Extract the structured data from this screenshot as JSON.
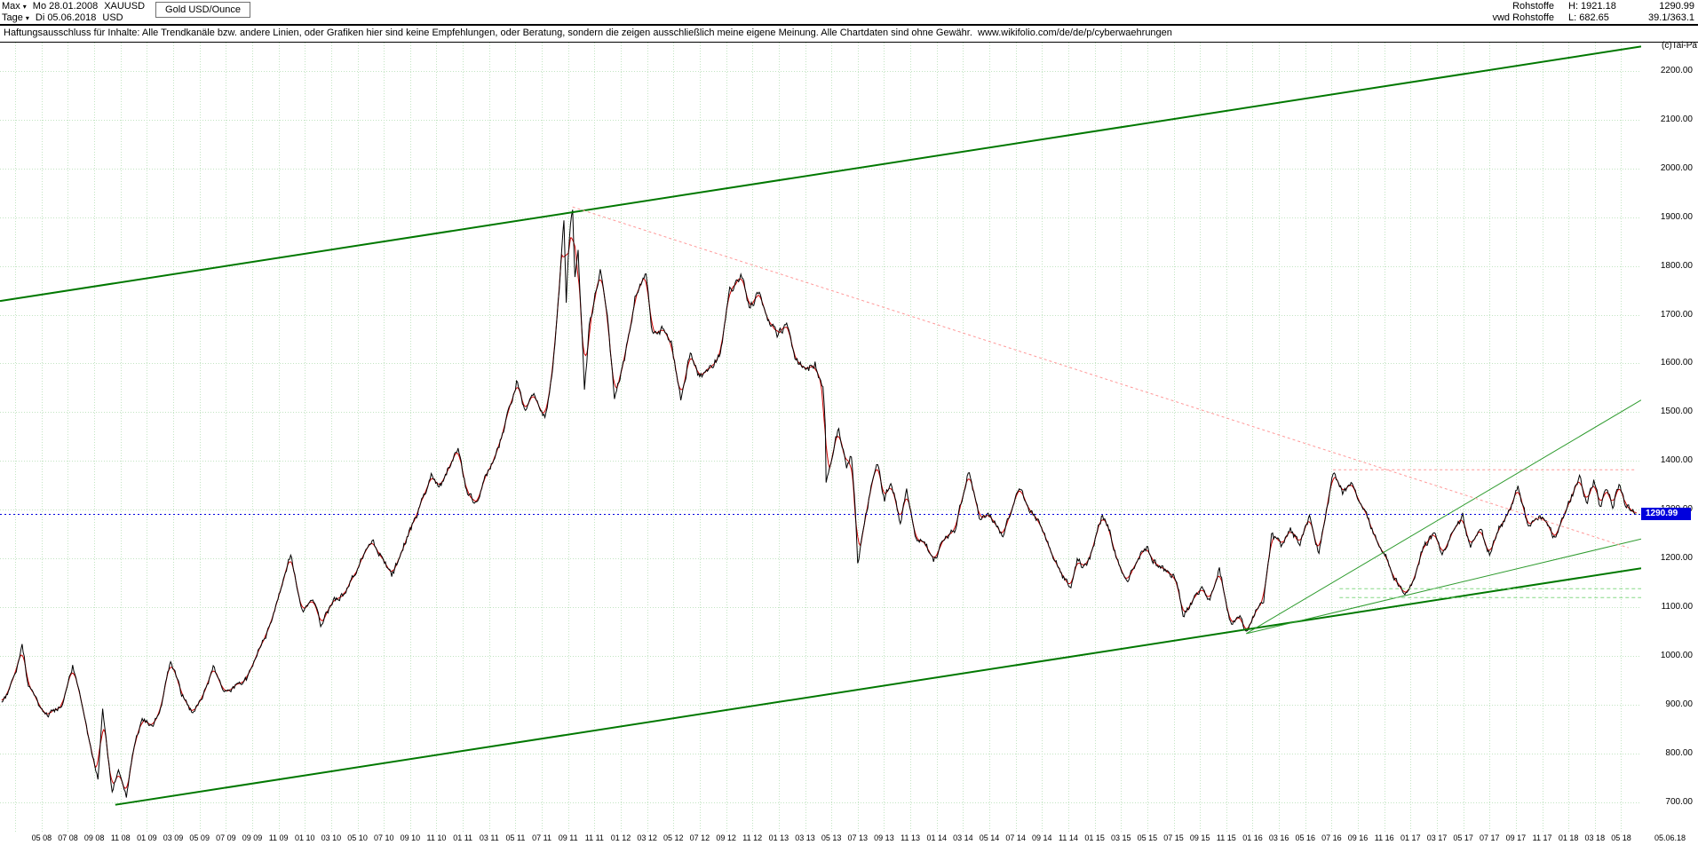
{
  "icons": {
    "chevron_down": "▾"
  },
  "header": {
    "range_button": "Max",
    "period_button": "Tage",
    "start_date": "Mo 28.01.2008",
    "end_date": "Di 05.06.2018",
    "symbol": "XAUUSD",
    "currency": "USD",
    "instrument": "Gold USD/Ounce",
    "category": "Rohstoffe",
    "provider": "vwd Rohstoffe",
    "high": "H: 1921.18",
    "low": "L: 682.65",
    "last": "1290.99",
    "stat": "39.1/363.1"
  },
  "disclaimer": "Haftungsausschluss für Inhalte: Alle Trendkanäle bzw. andere Linien, oder Grafiken hier sind keine Empfehlungen, oder Beratung, sondern die zeigen ausschließlich meine eigene Meinung. Alle Chartdaten sind ohne Gewähr.  www.wikifolio.com/de/de/p/cyberwaehrungen",
  "copyright": "(c)Tai-Pa",
  "chart_data": {
    "type": "line",
    "title": "Gold USD/Ounce",
    "symbol": "XAUUSD",
    "last_price": 1290.99,
    "last_price_tag": "1290.99",
    "last_price_color": "#0000dd",
    "grid_color": "#c2e4c2",
    "x_range": [
      2008.07,
      2018.46
    ],
    "y_range": [
      638,
      2258
    ],
    "y_tick_values": [
      2200,
      2100,
      2000,
      1900,
      1800,
      1700,
      1600,
      1500,
      1400,
      1300,
      1200,
      1100,
      1000,
      900,
      800,
      700
    ],
    "y_tick_labels": [
      "2200.00",
      "2100.00",
      "2000.00",
      "1900.00",
      "1800.00",
      "1700.00",
      "1600.00",
      "1500.00",
      "1400.00",
      "1300.00",
      "1200.00",
      "1100.00",
      "1000.00",
      "900.00",
      "800.00",
      "700.00"
    ],
    "x_tick_start_year": 2008,
    "x_tick_start_month": 5,
    "x_tick_step_months": 2,
    "x_grid_extra": [
      2008.167
    ],
    "x_tick_labels": [
      "05 08",
      "07 08",
      "09 08",
      "11 08",
      "01 09",
      "03 09",
      "05 09",
      "07 09",
      "09 09",
      "11 09",
      "01 10",
      "03 10",
      "05 10",
      "07 10",
      "09 10",
      "11 10",
      "01 11",
      "03 11",
      "05 11",
      "07 11",
      "09 11",
      "11 11",
      "01 12",
      "03 12",
      "05 12",
      "07 12",
      "09 12",
      "11 12",
      "01 13",
      "03 13",
      "05 13",
      "07 13",
      "09 13",
      "11 13",
      "01 14",
      "03 14",
      "05 14",
      "07 14",
      "09 14",
      "11 14",
      "01 15",
      "03 15",
      "05 15",
      "07 15",
      "09 15",
      "11 15",
      "01 16",
      "03 16",
      "05 16",
      "07 16",
      "09 16",
      "11 16",
      "01 17",
      "03 17",
      "05 17",
      "07 17",
      "09 17",
      "11 17",
      "01 18",
      "03 18",
      "05 18"
    ],
    "x_end_label": "05.06.18",
    "series": [
      {
        "name": "xauusd-close",
        "color": "#000000",
        "points": [
          [
            2008.08,
            905
          ],
          [
            2008.13,
            930
          ],
          [
            2008.18,
            978
          ],
          [
            2008.21,
            1028
          ],
          [
            2008.25,
            938
          ],
          [
            2008.3,
            908
          ],
          [
            2008.37,
            878
          ],
          [
            2008.46,
            898
          ],
          [
            2008.53,
            978
          ],
          [
            2008.58,
            912
          ],
          [
            2008.63,
            832
          ],
          [
            2008.69,
            748
          ],
          [
            2008.72,
            898
          ],
          [
            2008.78,
            722
          ],
          [
            2008.82,
            772
          ],
          [
            2008.87,
            712
          ],
          [
            2008.92,
            818
          ],
          [
            2008.97,
            872
          ],
          [
            2009.04,
            852
          ],
          [
            2009.1,
            912
          ],
          [
            2009.15,
            992
          ],
          [
            2009.22,
            922
          ],
          [
            2009.29,
            882
          ],
          [
            2009.37,
            928
          ],
          [
            2009.42,
            978
          ],
          [
            2009.49,
            928
          ],
          [
            2009.56,
            938
          ],
          [
            2009.63,
            952
          ],
          [
            2009.69,
            998
          ],
          [
            2009.76,
            1048
          ],
          [
            2009.83,
            1118
          ],
          [
            2009.91,
            1208
          ],
          [
            2009.99,
            1088
          ],
          [
            2010.05,
            1122
          ],
          [
            2010.1,
            1062
          ],
          [
            2010.18,
            1112
          ],
          [
            2010.26,
            1132
          ],
          [
            2010.34,
            1188
          ],
          [
            2010.42,
            1238
          ],
          [
            2010.49,
            1205
          ],
          [
            2010.55,
            1162
          ],
          [
            2010.64,
            1238
          ],
          [
            2010.72,
            1298
          ],
          [
            2010.8,
            1372
          ],
          [
            2010.85,
            1342
          ],
          [
            2010.91,
            1388
          ],
          [
            2010.97,
            1420
          ],
          [
            2011.03,
            1332
          ],
          [
            2011.08,
            1312
          ],
          [
            2011.16,
            1378
          ],
          [
            2011.23,
            1432
          ],
          [
            2011.3,
            1512
          ],
          [
            2011.34,
            1562
          ],
          [
            2011.39,
            1498
          ],
          [
            2011.45,
            1532
          ],
          [
            2011.52,
            1486
          ],
          [
            2011.57,
            1592
          ],
          [
            2011.61,
            1748
          ],
          [
            2011.64,
            1898
          ],
          [
            2011.655,
            1732
          ],
          [
            2011.675,
            1862
          ],
          [
            2011.695,
            1921
          ],
          [
            2011.71,
            1782
          ],
          [
            2011.73,
            1822
          ],
          [
            2011.755,
            1652
          ],
          [
            2011.77,
            1542
          ],
          [
            2011.8,
            1672
          ],
          [
            2011.83,
            1722
          ],
          [
            2011.87,
            1792
          ],
          [
            2011.92,
            1682
          ],
          [
            2011.96,
            1528
          ],
          [
            2012.03,
            1618
          ],
          [
            2012.09,
            1738
          ],
          [
            2012.16,
            1782
          ],
          [
            2012.2,
            1662
          ],
          [
            2012.26,
            1668
          ],
          [
            2012.32,
            1638
          ],
          [
            2012.38,
            1532
          ],
          [
            2012.44,
            1622
          ],
          [
            2012.5,
            1568
          ],
          [
            2012.57,
            1592
          ],
          [
            2012.63,
            1618
          ],
          [
            2012.69,
            1748
          ],
          [
            2012.76,
            1782
          ],
          [
            2012.82,
            1712
          ],
          [
            2012.87,
            1748
          ],
          [
            2012.93,
            1692
          ],
          [
            2012.99,
            1658
          ],
          [
            2013.05,
            1678
          ],
          [
            2013.11,
            1608
          ],
          [
            2013.17,
            1582
          ],
          [
            2013.23,
            1602
          ],
          [
            2013.28,
            1552
          ],
          [
            2013.295,
            1478
          ],
          [
            2013.3,
            1352
          ],
          [
            2013.33,
            1398
          ],
          [
            2013.38,
            1468
          ],
          [
            2013.43,
            1388
          ],
          [
            2013.46,
            1412
          ],
          [
            2013.485,
            1302
          ],
          [
            2013.5,
            1188
          ],
          [
            2013.55,
            1288
          ],
          [
            2013.62,
            1398
          ],
          [
            2013.67,
            1322
          ],
          [
            2013.71,
            1362
          ],
          [
            2013.77,
            1272
          ],
          [
            2013.81,
            1342
          ],
          [
            2013.87,
            1242
          ],
          [
            2013.93,
            1232
          ],
          [
            2013.98,
            1192
          ],
          [
            2014.05,
            1242
          ],
          [
            2014.12,
            1262
          ],
          [
            2014.2,
            1382
          ],
          [
            2014.27,
            1288
          ],
          [
            2014.34,
            1292
          ],
          [
            2014.42,
            1244
          ],
          [
            2014.49,
            1322
          ],
          [
            2014.53,
            1338
          ],
          [
            2014.61,
            1288
          ],
          [
            2014.67,
            1258
          ],
          [
            2014.73,
            1212
          ],
          [
            2014.79,
            1168
          ],
          [
            2014.85,
            1138
          ],
          [
            2014.89,
            1198
          ],
          [
            2014.93,
            1182
          ],
          [
            2014.97,
            1198
          ],
          [
            2015.05,
            1292
          ],
          [
            2015.09,
            1262
          ],
          [
            2015.14,
            1202
          ],
          [
            2015.21,
            1152
          ],
          [
            2015.27,
            1202
          ],
          [
            2015.33,
            1222
          ],
          [
            2015.39,
            1188
          ],
          [
            2015.46,
            1172
          ],
          [
            2015.52,
            1158
          ],
          [
            2015.56,
            1082
          ],
          [
            2015.62,
            1112
          ],
          [
            2015.68,
            1142
          ],
          [
            2015.73,
            1108
          ],
          [
            2015.79,
            1182
          ],
          [
            2015.86,
            1068
          ],
          [
            2015.92,
            1078
          ],
          [
            2015.96,
            1048
          ],
          [
            2016.02,
            1092
          ],
          [
            2016.07,
            1118
          ],
          [
            2016.12,
            1246
          ],
          [
            2016.18,
            1228
          ],
          [
            2016.24,
            1258
          ],
          [
            2016.3,
            1228
          ],
          [
            2016.36,
            1288
          ],
          [
            2016.42,
            1212
          ],
          [
            2016.48,
            1318
          ],
          [
            2016.51,
            1372
          ],
          [
            2016.57,
            1338
          ],
          [
            2016.63,
            1352
          ],
          [
            2016.7,
            1308
          ],
          [
            2016.77,
            1252
          ],
          [
            2016.83,
            1218
          ],
          [
            2016.89,
            1168
          ],
          [
            2016.95,
            1128
          ],
          [
            2017.02,
            1152
          ],
          [
            2017.08,
            1222
          ],
          [
            2017.15,
            1252
          ],
          [
            2017.2,
            1202
          ],
          [
            2017.26,
            1252
          ],
          [
            2017.33,
            1286
          ],
          [
            2017.38,
            1218
          ],
          [
            2017.44,
            1262
          ],
          [
            2017.5,
            1208
          ],
          [
            2017.56,
            1262
          ],
          [
            2017.62,
            1292
          ],
          [
            2017.68,
            1352
          ],
          [
            2017.74,
            1268
          ],
          [
            2017.8,
            1288
          ],
          [
            2017.86,
            1272
          ],
          [
            2017.92,
            1238
          ],
          [
            2017.98,
            1296
          ],
          [
            2018.04,
            1342
          ],
          [
            2018.07,
            1362
          ],
          [
            2018.12,
            1312
          ],
          [
            2018.16,
            1356
          ],
          [
            2018.2,
            1308
          ],
          [
            2018.24,
            1342
          ],
          [
            2018.28,
            1312
          ],
          [
            2018.32,
            1352
          ],
          [
            2018.36,
            1308
          ],
          [
            2018.4,
            1298
          ],
          [
            2018.43,
            1291
          ]
        ]
      },
      {
        "name": "price-smoothed-red",
        "color": "#cc0000",
        "derived_from": "xauusd-close",
        "window": 7
      }
    ],
    "overlays": [
      {
        "name": "upper-channel-line",
        "color": "#007800",
        "width": 2,
        "from": [
          2008.07,
          1728
        ],
        "to": [
          2018.46,
          2250
        ]
      },
      {
        "name": "lower-channel-line",
        "color": "#007800",
        "width": 2,
        "from": [
          2008.8,
          695
        ],
        "to": [
          2018.46,
          1180
        ]
      },
      {
        "name": "rising-trend-steep",
        "color": "#2e9b2e",
        "width": 1,
        "from": [
          2015.96,
          1046
        ],
        "to": [
          2018.46,
          1525
        ]
      },
      {
        "name": "rising-trend-shallow",
        "color": "#2e9b2e",
        "width": 1,
        "from": [
          2015.96,
          1046
        ],
        "to": [
          2018.46,
          1240
        ]
      },
      {
        "name": "descending-resistance",
        "color": "#ff9898",
        "width": 1,
        "dash": "3,3",
        "from": [
          2011.695,
          1921
        ],
        "to": [
          2018.38,
          1222
        ]
      },
      {
        "name": "horizontal-resistance",
        "color": "#ff9898",
        "width": 1,
        "dash": "3,3",
        "from": [
          2016.51,
          1382
        ],
        "to": [
          2018.42,
          1382
        ]
      },
      {
        "name": "horizontal-support-upper",
        "color": "#86d886",
        "width": 1,
        "dash": "4,3",
        "from": [
          2016.55,
          1138
        ],
        "to": [
          2018.46,
          1138
        ]
      },
      {
        "name": "horizontal-support-lower",
        "color": "#86d886",
        "width": 1,
        "dash": "4,3",
        "from": [
          2016.55,
          1120
        ],
        "to": [
          2018.46,
          1120
        ]
      }
    ]
  }
}
